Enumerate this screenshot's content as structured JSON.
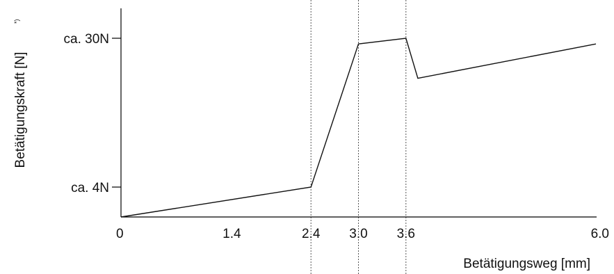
{
  "chart_data": {
    "type": "line",
    "xlabel": "Betätigungsweg [mm]",
    "ylabel": "Betätigungskraft [N]",
    "ylabel_note": "*)",
    "xlim": [
      0,
      6.0
    ],
    "x_ticks": [
      {
        "value": 0,
        "label": "0"
      },
      {
        "value": 1.4,
        "label": "1.4"
      },
      {
        "value": 2.4,
        "label": "2.4"
      },
      {
        "value": 3.0,
        "label": "3.0"
      },
      {
        "value": 3.6,
        "label": "3.6"
      },
      {
        "value": 6.0,
        "label": "6.0"
      }
    ],
    "y_ticks": [
      {
        "value": 4,
        "label": "ca. 4N"
      },
      {
        "value": 30,
        "label": "ca. 30N"
      }
    ],
    "guide_lines_x": [
      2.4,
      3.0,
      3.6
    ],
    "series": [
      {
        "x": [
          0,
          2.4,
          3.0,
          3.6,
          3.75,
          6.0
        ],
        "y": [
          0,
          4,
          29,
          30,
          23,
          29
        ]
      }
    ]
  }
}
